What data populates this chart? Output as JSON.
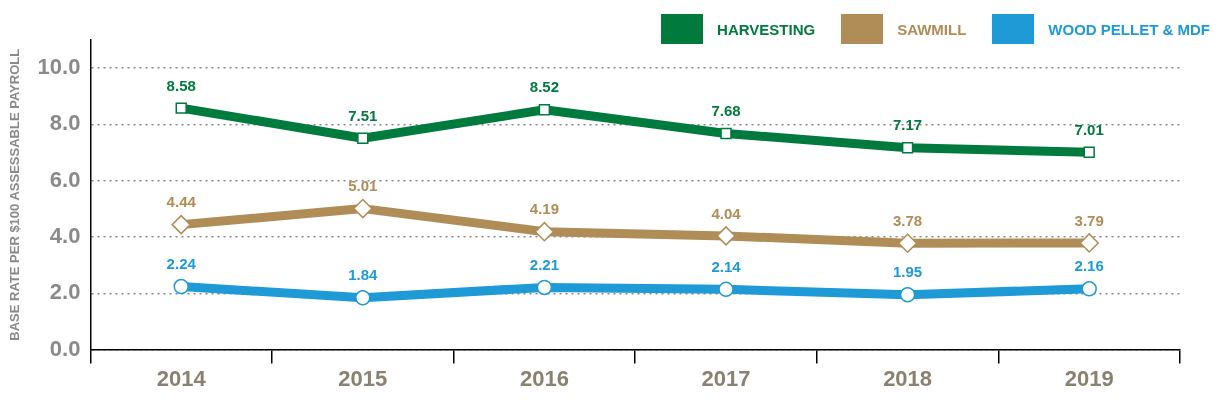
{
  "chart_data": {
    "type": "line",
    "ylabel": "BASE RATE PER $100 ASSESSABLE PAYROLL",
    "categories": [
      "2014",
      "2015",
      "2016",
      "2017",
      "2018",
      "2019"
    ],
    "series": [
      {
        "name": "HARVESTING",
        "color": "#007a3d",
        "marker": "square",
        "values": [
          8.58,
          7.51,
          8.52,
          7.68,
          7.17,
          7.01
        ]
      },
      {
        "name": "SAWMILL",
        "color": "#b08d57",
        "marker": "diamond",
        "values": [
          4.44,
          5.01,
          4.19,
          4.04,
          3.78,
          3.79
        ]
      },
      {
        "name": "WOOD PELLET & MDF",
        "color": "#1e9ad6",
        "marker": "circle",
        "values": [
          2.24,
          1.84,
          2.21,
          2.14,
          1.95,
          2.16
        ]
      }
    ],
    "ylim": [
      0,
      11
    ],
    "yticks": [
      {
        "value": 0,
        "label": "0.0"
      },
      {
        "value": 2,
        "label": "2.0"
      },
      {
        "value": 4,
        "label": "4.0"
      },
      {
        "value": 6,
        "label": "6.0"
      },
      {
        "value": 8,
        "label": "8.0"
      },
      {
        "value": 10,
        "label": "10.0"
      }
    ],
    "grid": "y",
    "legend": "top right",
    "data_labels": true,
    "line_style": "solid"
  }
}
